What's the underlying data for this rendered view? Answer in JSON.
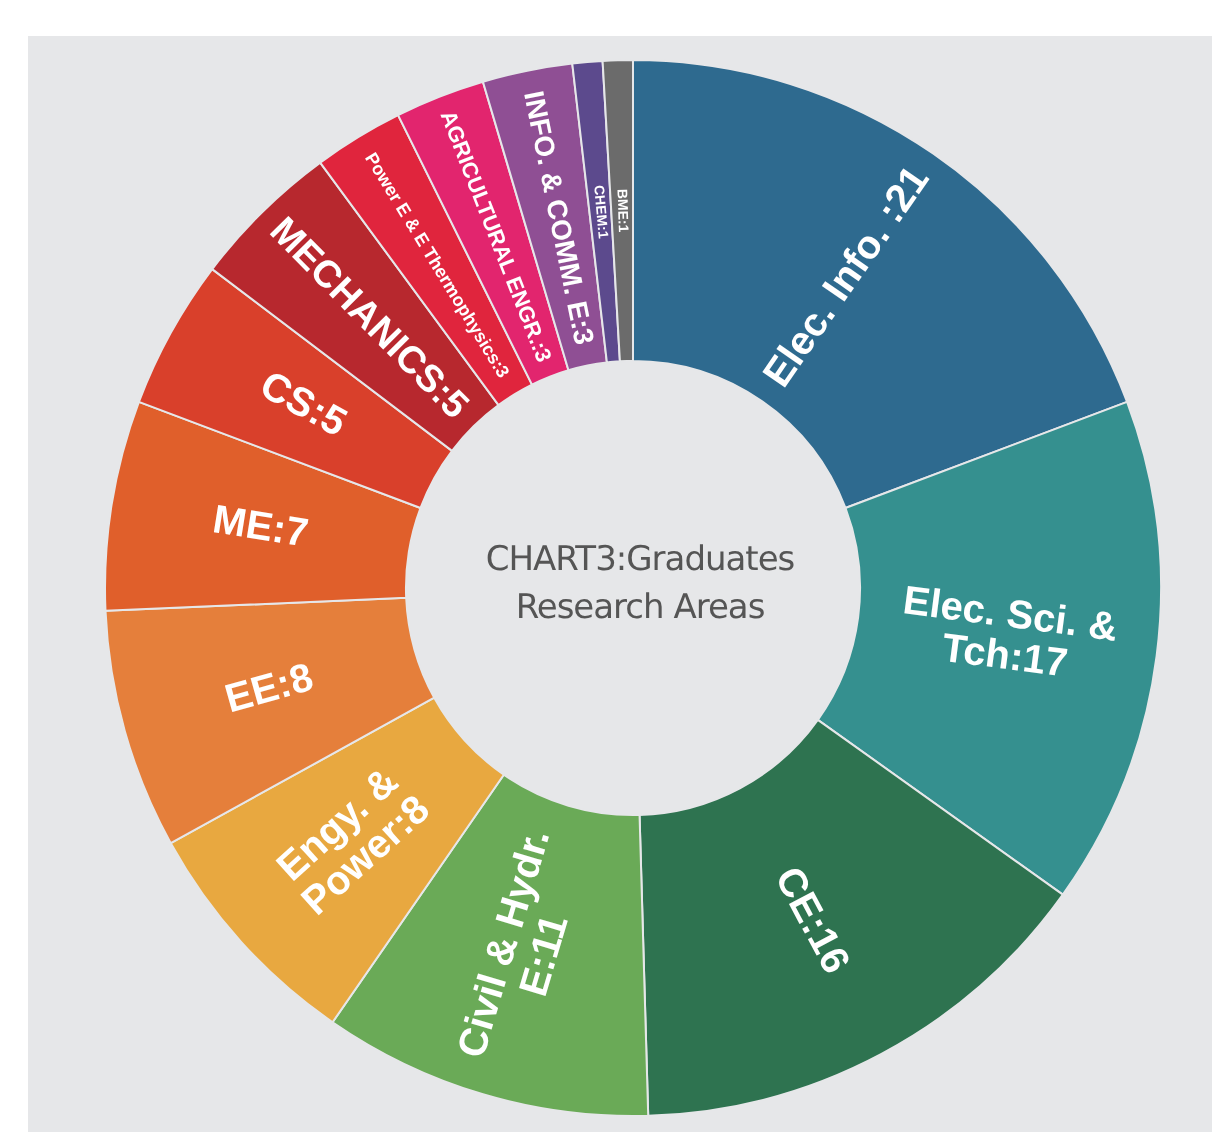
{
  "chart_data": {
    "type": "donut",
    "title": "CHART3:Graduates Research Areas",
    "categories": [
      "Elec. Info. :21",
      "Elec. Sci. & Tch:17",
      "CE:16",
      "Civil & Hydr. E:11",
      "Engy. & Power:8",
      "EE:8",
      "ME:7",
      "CS:5",
      "MECHANICS:5",
      "Power E & E Thermophysics:3",
      "AGRICULTURAL ENGR.:3",
      "INFO. & COMM. E:3",
      "CHEM:1",
      "BME:1"
    ],
    "values": [
      21,
      17,
      16,
      11,
      8,
      8,
      7,
      5,
      5,
      3,
      3,
      3,
      1,
      1
    ],
    "colors": [
      "#2e6a8f",
      "#35908f",
      "#2e7350",
      "#6aaa57",
      "#e8a840",
      "#e57f3b",
      "#e05f2b",
      "#d9402b",
      "#b7282e",
      "#e0253d",
      "#e2256e",
      "#8f4f94",
      "#5c4a8d",
      "#6b6b6b"
    ],
    "legend": false
  }
}
